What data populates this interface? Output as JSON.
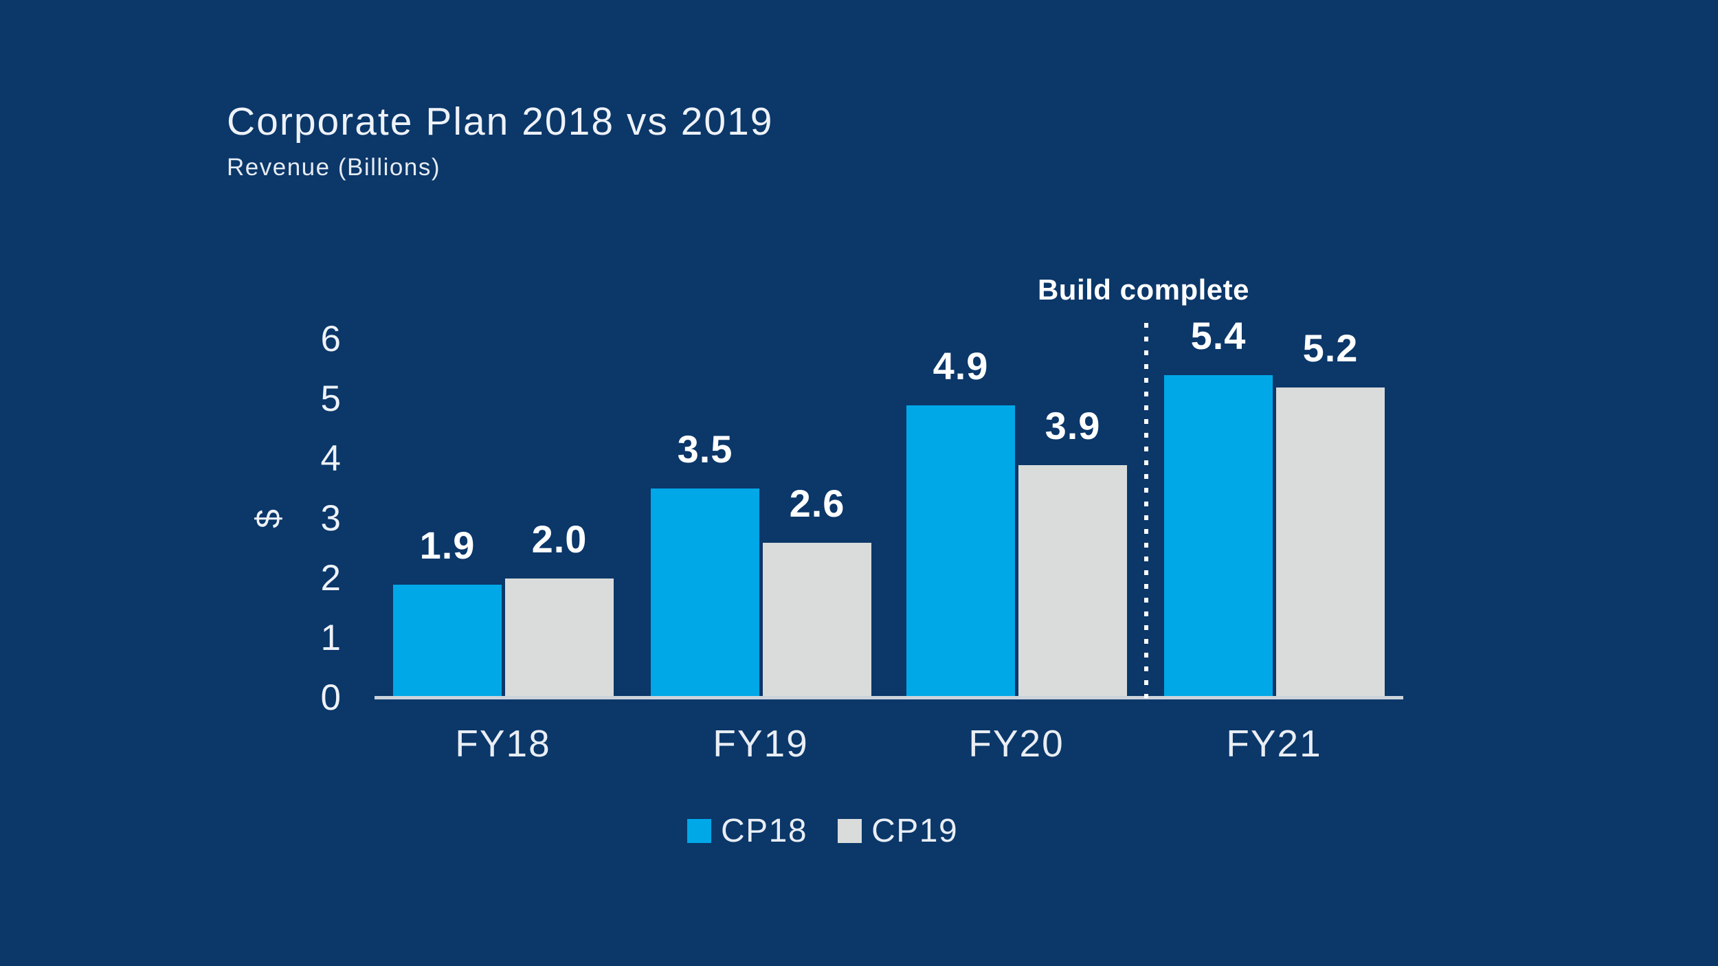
{
  "title": "Corporate Plan 2018 vs 2019",
  "subtitle": "Revenue (Billions)",
  "colors": {
    "background": "#0b3769",
    "bar_blue": "#00a8e8",
    "bar_gray": "#d9dcdb",
    "axis_line": "#ccd3db",
    "text_light": "#eef2f7",
    "text_white": "#ffffff"
  },
  "chart_data": {
    "type": "bar",
    "title": "Corporate Plan 2018 vs 2019",
    "subtitle": "Revenue (Billions)",
    "categories": [
      "FY18",
      "FY19",
      "FY20",
      "FY21"
    ],
    "series": [
      {
        "name": "CP18",
        "color": "#00a8e8",
        "values": [
          1.9,
          3.5,
          4.9,
          5.4
        ]
      },
      {
        "name": "CP19",
        "color": "#d9dcdb",
        "values": [
          2.0,
          2.6,
          3.9,
          5.2
        ]
      }
    ],
    "ylabel": "$",
    "yticks": [
      0,
      1,
      2,
      3,
      4,
      5,
      6
    ],
    "ylim": [
      0,
      6
    ],
    "grid": false,
    "value_labels": "one-decimal",
    "legend_position": "bottom-center",
    "annotation": {
      "text": "Build complete",
      "position": "vertical dotted line between FY20 and FY21",
      "line_style": "dotted-vertical"
    }
  },
  "legend": {
    "items": [
      {
        "label": "CP18",
        "color": "#00a8e8"
      },
      {
        "label": "CP19",
        "color": "#d9dcdb"
      }
    ]
  }
}
